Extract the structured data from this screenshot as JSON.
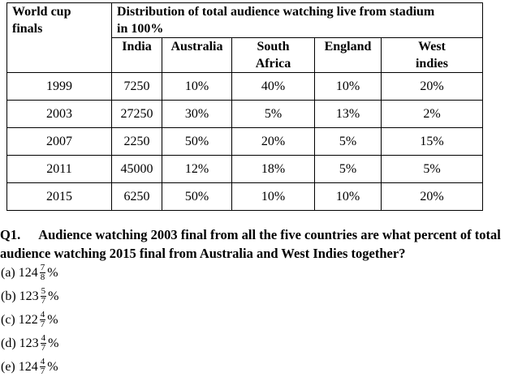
{
  "table": {
    "header": {
      "first": "World cup finals",
      "group": "Distribution of total audience watching live from stadium in 100%",
      "columns": [
        "India",
        "Australia",
        "South Africa",
        "England",
        "West indies"
      ]
    },
    "rows": [
      [
        "1999",
        "7250",
        "10%",
        "40%",
        "10%",
        "20%"
      ],
      [
        "2003",
        "27250",
        "30%",
        "5%",
        "13%",
        "2%"
      ],
      [
        "2007",
        "2250",
        "50%",
        "20%",
        "5%",
        "15%"
      ],
      [
        "2011",
        "45000",
        "12%",
        "18%",
        "5%",
        "5%"
      ],
      [
        "2015",
        "6250",
        "50%",
        "10%",
        "10%",
        "20%"
      ]
    ]
  },
  "question": {
    "number": "Q1.",
    "text": "Audience watching 2003 final from all the five countries are what percent of total audience watching 2015 final from Australia and West Indies together?"
  },
  "options": [
    {
      "label": "(a)",
      "whole": "124",
      "num": "7",
      "den": "8",
      "unit": "%"
    },
    {
      "label": "(b)",
      "whole": "123",
      "num": "5",
      "den": "7",
      "unit": "%"
    },
    {
      "label": "(c)",
      "whole": "122",
      "num": "4",
      "den": "7",
      "unit": "%"
    },
    {
      "label": "(d)",
      "whole": "123",
      "num": "4",
      "den": "7",
      "unit": "%"
    },
    {
      "label": "(e)",
      "whole": "124",
      "num": "4",
      "den": "7",
      "unit": "%"
    }
  ]
}
